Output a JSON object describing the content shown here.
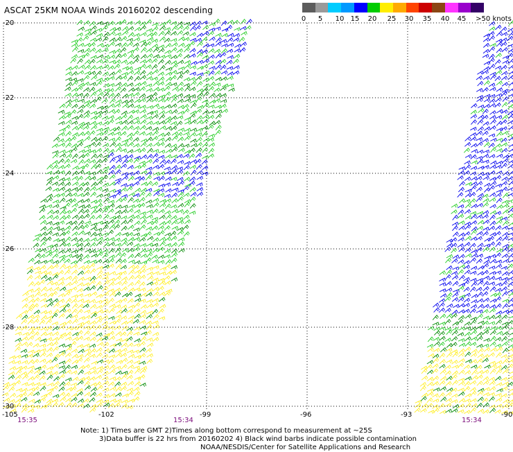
{
  "title": "ASCAT 25KM NOAA Winds 20160202 descending",
  "legend": {
    "colors": [
      "#5c5c5c",
      "#9a9a9a",
      "#00ccff",
      "#0099ff",
      "#0000ff",
      "#00cc00",
      "#ffee00",
      "#ffaa00",
      "#ff4400",
      "#cc0000",
      "#8b4513",
      "#ff33ff",
      "#9900cc",
      "#330066"
    ],
    "labels": [
      "0",
      "5",
      "10",
      "15",
      "20",
      "25",
      "30",
      "35",
      "40",
      "45",
      ">50 knots"
    ]
  },
  "axes": {
    "lon_ticks": [
      "-105",
      "-102",
      "-99",
      "-96",
      "-93",
      "-90"
    ],
    "lat_ticks": [
      "-20",
      "-22",
      "-24",
      "-26",
      "-28",
      "-30"
    ]
  },
  "times": [
    "15:35",
    "15:34",
    "15:34"
  ],
  "notes": {
    "line1": "Note: 1) Times are GMT 2)Times along bottom correspond to measurement at ~25S",
    "line2": "3)Data buffer is 22 hrs from 20160202 4) Black wind barbs indicate possible contamination",
    "line3": "NOAA/NESDIS/Center for Satellite Applications and Research"
  },
  "palette": {
    "green": "#22cc22",
    "dark_green": "#008800",
    "yellow": "#ffee22",
    "blue": "#0000ee",
    "time": "#7a0a7a"
  }
}
